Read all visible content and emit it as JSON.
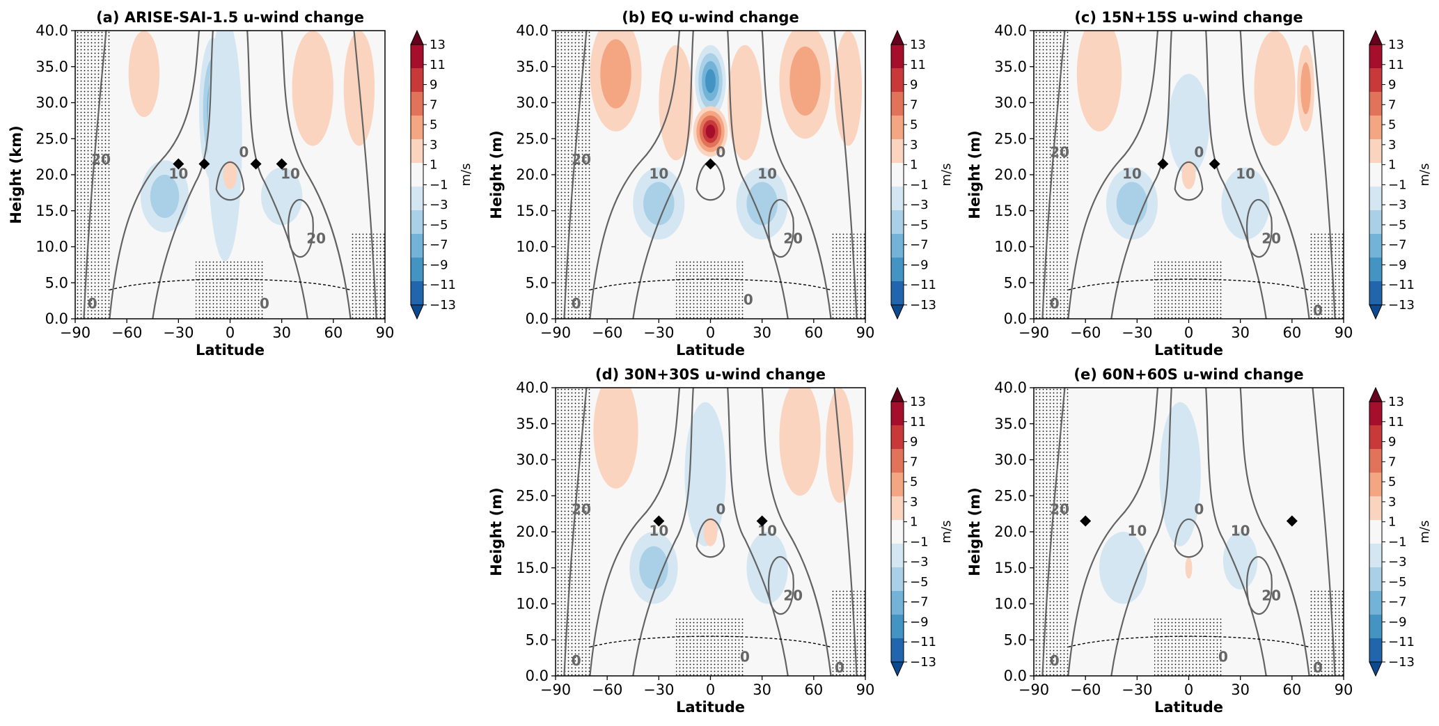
{
  "chart_data": [
    {
      "id": "a",
      "type": "heatmap",
      "title": "(a) ARISE-SAI-1.5 u-wind change",
      "xlabel": "Latitude",
      "ylabel": "Height (km)",
      "xlim": [
        -90,
        90
      ],
      "ylim": [
        0,
        40
      ],
      "xticks": [
        "−90",
        "−60",
        "−30",
        "0",
        "30",
        "60",
        "90"
      ],
      "yticks": [
        "0.0",
        "5.0",
        "10.0",
        "15.0",
        "20.0",
        "25.0",
        "30.0",
        "35.0",
        "40.0"
      ],
      "colorbar": {
        "label": "m/s",
        "levels": [
          "13",
          "11",
          "9",
          "7",
          "5",
          "3",
          "1",
          "−1",
          "−3",
          "−5",
          "−7",
          "−9",
          "−11",
          "−13"
        ]
      },
      "markers": [
        [
          -30,
          21.5
        ],
        [
          -15,
          21.5
        ],
        [
          15,
          21.5
        ],
        [
          30,
          21.5
        ]
      ],
      "blobs": [
        {
          "lat": -10,
          "h": 29,
          "rx": 8,
          "ry": 10,
          "v": -6
        },
        {
          "lat": -3,
          "h": 25,
          "rx": 10,
          "ry": 17,
          "v": -3
        },
        {
          "lat": -38,
          "h": 17,
          "rx": 14,
          "ry": 5,
          "v": -4
        },
        {
          "lat": 30,
          "h": 17,
          "rx": 12,
          "ry": 4,
          "v": -3
        },
        {
          "lat": -50,
          "h": 34,
          "rx": 9,
          "ry": 6,
          "v": 2
        },
        {
          "lat": 48,
          "h": 32,
          "rx": 12,
          "ry": 8,
          "v": 2
        },
        {
          "lat": 75,
          "h": 32,
          "rx": 9,
          "ry": 8,
          "v": 2
        },
        {
          "lat": 0,
          "h": 20,
          "rx": 4,
          "ry": 2,
          "v": 2
        }
      ],
      "contour_labels": [
        {
          "text": "20",
          "lat": -75,
          "h": 22
        },
        {
          "text": "10",
          "lat": -30,
          "h": 20
        },
        {
          "text": "10",
          "lat": 35,
          "h": 20
        },
        {
          "text": "0",
          "lat": 8,
          "h": 23
        },
        {
          "text": "20",
          "lat": 50,
          "h": 11
        },
        {
          "text": "0",
          "lat": -80,
          "h": 2
        },
        {
          "text": "0",
          "lat": 20,
          "h": 2
        }
      ]
    },
    {
      "id": "b",
      "type": "heatmap",
      "title": "(b) EQ u-wind change",
      "xlabel": "Latitude",
      "ylabel": "Height (m)",
      "xlim": [
        -90,
        90
      ],
      "ylim": [
        0,
        40
      ],
      "xticks": [
        "−90",
        "−60",
        "−30",
        "0",
        "30",
        "60",
        "90"
      ],
      "yticks": [
        "0.0",
        "5.0",
        "10.0",
        "15.0",
        "20.0",
        "25.0",
        "30.0",
        "35.0",
        "40.0"
      ],
      "colorbar": {
        "label": "m/s",
        "levels": [
          "13",
          "11",
          "9",
          "7",
          "5",
          "3",
          "1",
          "−1",
          "−3",
          "−5",
          "−7",
          "−9",
          "−11",
          "−13"
        ]
      },
      "markers": [
        [
          0,
          21.5
        ]
      ],
      "blobs": [
        {
          "lat": 0,
          "h": 33,
          "rx": 9,
          "ry": 5,
          "v": -9
        },
        {
          "lat": 0,
          "h": 26,
          "rx": 10,
          "ry": 3.5,
          "v": 11
        },
        {
          "lat": -30,
          "h": 16,
          "rx": 15,
          "ry": 5,
          "v": -5
        },
        {
          "lat": 30,
          "h": 16,
          "rx": 15,
          "ry": 5,
          "v": -5
        },
        {
          "lat": -55,
          "h": 34,
          "rx": 15,
          "ry": 8,
          "v": 5
        },
        {
          "lat": 55,
          "h": 33,
          "rx": 15,
          "ry": 8,
          "v": 4
        },
        {
          "lat": 80,
          "h": 32,
          "rx": 8,
          "ry": 8,
          "v": 3
        },
        {
          "lat": -20,
          "h": 30,
          "rx": 10,
          "ry": 8,
          "v": 2
        },
        {
          "lat": 20,
          "h": 30,
          "rx": 10,
          "ry": 8,
          "v": 2
        }
      ],
      "contour_labels": [
        {
          "text": "20",
          "lat": -75,
          "h": 22
        },
        {
          "text": "10",
          "lat": -30,
          "h": 20
        },
        {
          "text": "10",
          "lat": 33,
          "h": 20
        },
        {
          "text": "0",
          "lat": 6,
          "h": 23
        },
        {
          "text": "20",
          "lat": 48,
          "h": 11
        },
        {
          "text": "0",
          "lat": -78,
          "h": 2
        },
        {
          "text": "0",
          "lat": 22,
          "h": 2.5
        }
      ]
    },
    {
      "id": "c",
      "type": "heatmap",
      "title": "(c) 15N+15S u-wind change",
      "xlabel": "Latitude",
      "ylabel": "Height (m)",
      "xlim": [
        -90,
        90
      ],
      "ylim": [
        0,
        40
      ],
      "xticks": [
        "−90",
        "−60",
        "−30",
        "0",
        "30",
        "60",
        "90"
      ],
      "yticks": [
        "0.0",
        "5.0",
        "10.0",
        "15.0",
        "20.0",
        "25.0",
        "30.0",
        "35.0",
        "40.0"
      ],
      "colorbar": {
        "label": "m/s",
        "levels": [
          "13",
          "11",
          "9",
          "7",
          "5",
          "3",
          "1",
          "−1",
          "−3",
          "−5",
          "−7",
          "−9",
          "−11",
          "−13"
        ]
      },
      "markers": [
        [
          -15,
          21.5
        ],
        [
          15,
          21.5
        ]
      ],
      "blobs": [
        {
          "lat": 0,
          "h": 29,
          "rx": 8,
          "ry": 4,
          "v": -7
        },
        {
          "lat": 0,
          "h": 27,
          "rx": 12,
          "ry": 7,
          "v": -3
        },
        {
          "lat": -33,
          "h": 16,
          "rx": 15,
          "ry": 5,
          "v": -4
        },
        {
          "lat": 33,
          "h": 16,
          "rx": 14,
          "ry": 5,
          "v": -3
        },
        {
          "lat": -52,
          "h": 34,
          "rx": 13,
          "ry": 8,
          "v": 3
        },
        {
          "lat": 50,
          "h": 32,
          "rx": 12,
          "ry": 8,
          "v": 2
        },
        {
          "lat": 68,
          "h": 32,
          "rx": 5,
          "ry": 6,
          "v": 4
        },
        {
          "lat": 0,
          "h": 20,
          "rx": 4,
          "ry": 2,
          "v": 2
        }
      ],
      "contour_labels": [
        {
          "text": "20",
          "lat": -75,
          "h": 23
        },
        {
          "text": "10",
          "lat": -33,
          "h": 20
        },
        {
          "text": "10",
          "lat": 33,
          "h": 20
        },
        {
          "text": "0",
          "lat": 6,
          "h": 23
        },
        {
          "text": "20",
          "lat": 48,
          "h": 11
        },
        {
          "text": "0",
          "lat": -78,
          "h": 2
        },
        {
          "text": "0",
          "lat": 75,
          "h": 1
        }
      ]
    },
    {
      "id": "d",
      "type": "heatmap",
      "title": "(d) 30N+30S u-wind change",
      "xlabel": "Latitude",
      "ylabel": "Height (m)",
      "xlim": [
        -90,
        90
      ],
      "ylim": [
        0,
        40
      ],
      "xticks": [
        "−90",
        "−60",
        "−30",
        "0",
        "30",
        "60",
        "90"
      ],
      "yticks": [
        "0.0",
        "5.0",
        "10.0",
        "15.0",
        "20.0",
        "25.0",
        "30.0",
        "35.0",
        "40.0"
      ],
      "colorbar": {
        "label": "m/s",
        "levels": [
          "13",
          "11",
          "9",
          "7",
          "5",
          "3",
          "1",
          "−1",
          "−3",
          "−5",
          "−7",
          "−9",
          "−11",
          "−13"
        ]
      },
      "markers": [
        [
          -30,
          21.5
        ],
        [
          30,
          21.5
        ]
      ],
      "blobs": [
        {
          "lat": -3,
          "h": 28,
          "rx": 12,
          "ry": 10,
          "v": -3
        },
        {
          "lat": -33,
          "h": 15,
          "rx": 14,
          "ry": 5,
          "v": -4
        },
        {
          "lat": 33,
          "h": 15,
          "rx": 12,
          "ry": 5,
          "v": -3
        },
        {
          "lat": -55,
          "h": 34,
          "rx": 13,
          "ry": 8,
          "v": 2
        },
        {
          "lat": 52,
          "h": 33,
          "rx": 12,
          "ry": 8,
          "v": 2
        },
        {
          "lat": 75,
          "h": 32,
          "rx": 8,
          "ry": 8,
          "v": 2
        },
        {
          "lat": 0,
          "h": 20,
          "rx": 4,
          "ry": 2,
          "v": 2
        }
      ],
      "contour_labels": [
        {
          "text": "20",
          "lat": -75,
          "h": 23
        },
        {
          "text": "10",
          "lat": -30,
          "h": 20
        },
        {
          "text": "10",
          "lat": 33,
          "h": 20
        },
        {
          "text": "0",
          "lat": 6,
          "h": 23
        },
        {
          "text": "20",
          "lat": 48,
          "h": 11
        },
        {
          "text": "0",
          "lat": -78,
          "h": 2
        },
        {
          "text": "0",
          "lat": 20,
          "h": 2.5
        },
        {
          "text": "0",
          "lat": 75,
          "h": 1
        }
      ]
    },
    {
      "id": "e",
      "type": "heatmap",
      "title": "(e) 60N+60S u-wind change",
      "xlabel": "Latitude",
      "ylabel": "Height (m)",
      "xlim": [
        -90,
        90
      ],
      "ylim": [
        0,
        40
      ],
      "xticks": [
        "−90",
        "−60",
        "−30",
        "0",
        "30",
        "60",
        "90"
      ],
      "yticks": [
        "0.0",
        "5.0",
        "10.0",
        "15.0",
        "20.0",
        "25.0",
        "30.0",
        "35.0",
        "40.0"
      ],
      "colorbar": {
        "label": "m/s",
        "levels": [
          "13",
          "11",
          "9",
          "7",
          "5",
          "3",
          "1",
          "−1",
          "−3",
          "−5",
          "−7",
          "−9",
          "−11",
          "−13"
        ]
      },
      "markers": [
        [
          -60,
          21.5
        ],
        [
          60,
          21.5
        ]
      ],
      "blobs": [
        {
          "lat": -5,
          "h": 28,
          "rx": 12,
          "ry": 10,
          "v": -2
        },
        {
          "lat": -38,
          "h": 15,
          "rx": 14,
          "ry": 5,
          "v": -3
        },
        {
          "lat": 30,
          "h": 16,
          "rx": 10,
          "ry": 4,
          "v": -2
        },
        {
          "lat": 0,
          "h": 15,
          "rx": 2,
          "ry": 1.5,
          "v": 2
        }
      ],
      "contour_labels": [
        {
          "text": "20",
          "lat": -75,
          "h": 23
        },
        {
          "text": "10",
          "lat": -30,
          "h": 20
        },
        {
          "text": "10",
          "lat": 30,
          "h": 20
        },
        {
          "text": "0",
          "lat": 6,
          "h": 23
        },
        {
          "text": "20",
          "lat": 48,
          "h": 11
        },
        {
          "text": "0",
          "lat": -78,
          "h": 2
        },
        {
          "text": "0",
          "lat": 20,
          "h": 2.5
        },
        {
          "text": "0",
          "lat": 75,
          "h": 1
        }
      ]
    }
  ],
  "colors": {
    "levels_hex": [
      "#67001f",
      "#a50f2b",
      "#c83a3a",
      "#e0735a",
      "#f4a582",
      "#fbd4c0",
      "#f7f7f7",
      "#d4e6f1",
      "#a9d0e6",
      "#73b3d7",
      "#4393c3",
      "#2166ac",
      "#0b4a8f"
    ],
    "contour": "#636363",
    "stipple": "#000000"
  }
}
